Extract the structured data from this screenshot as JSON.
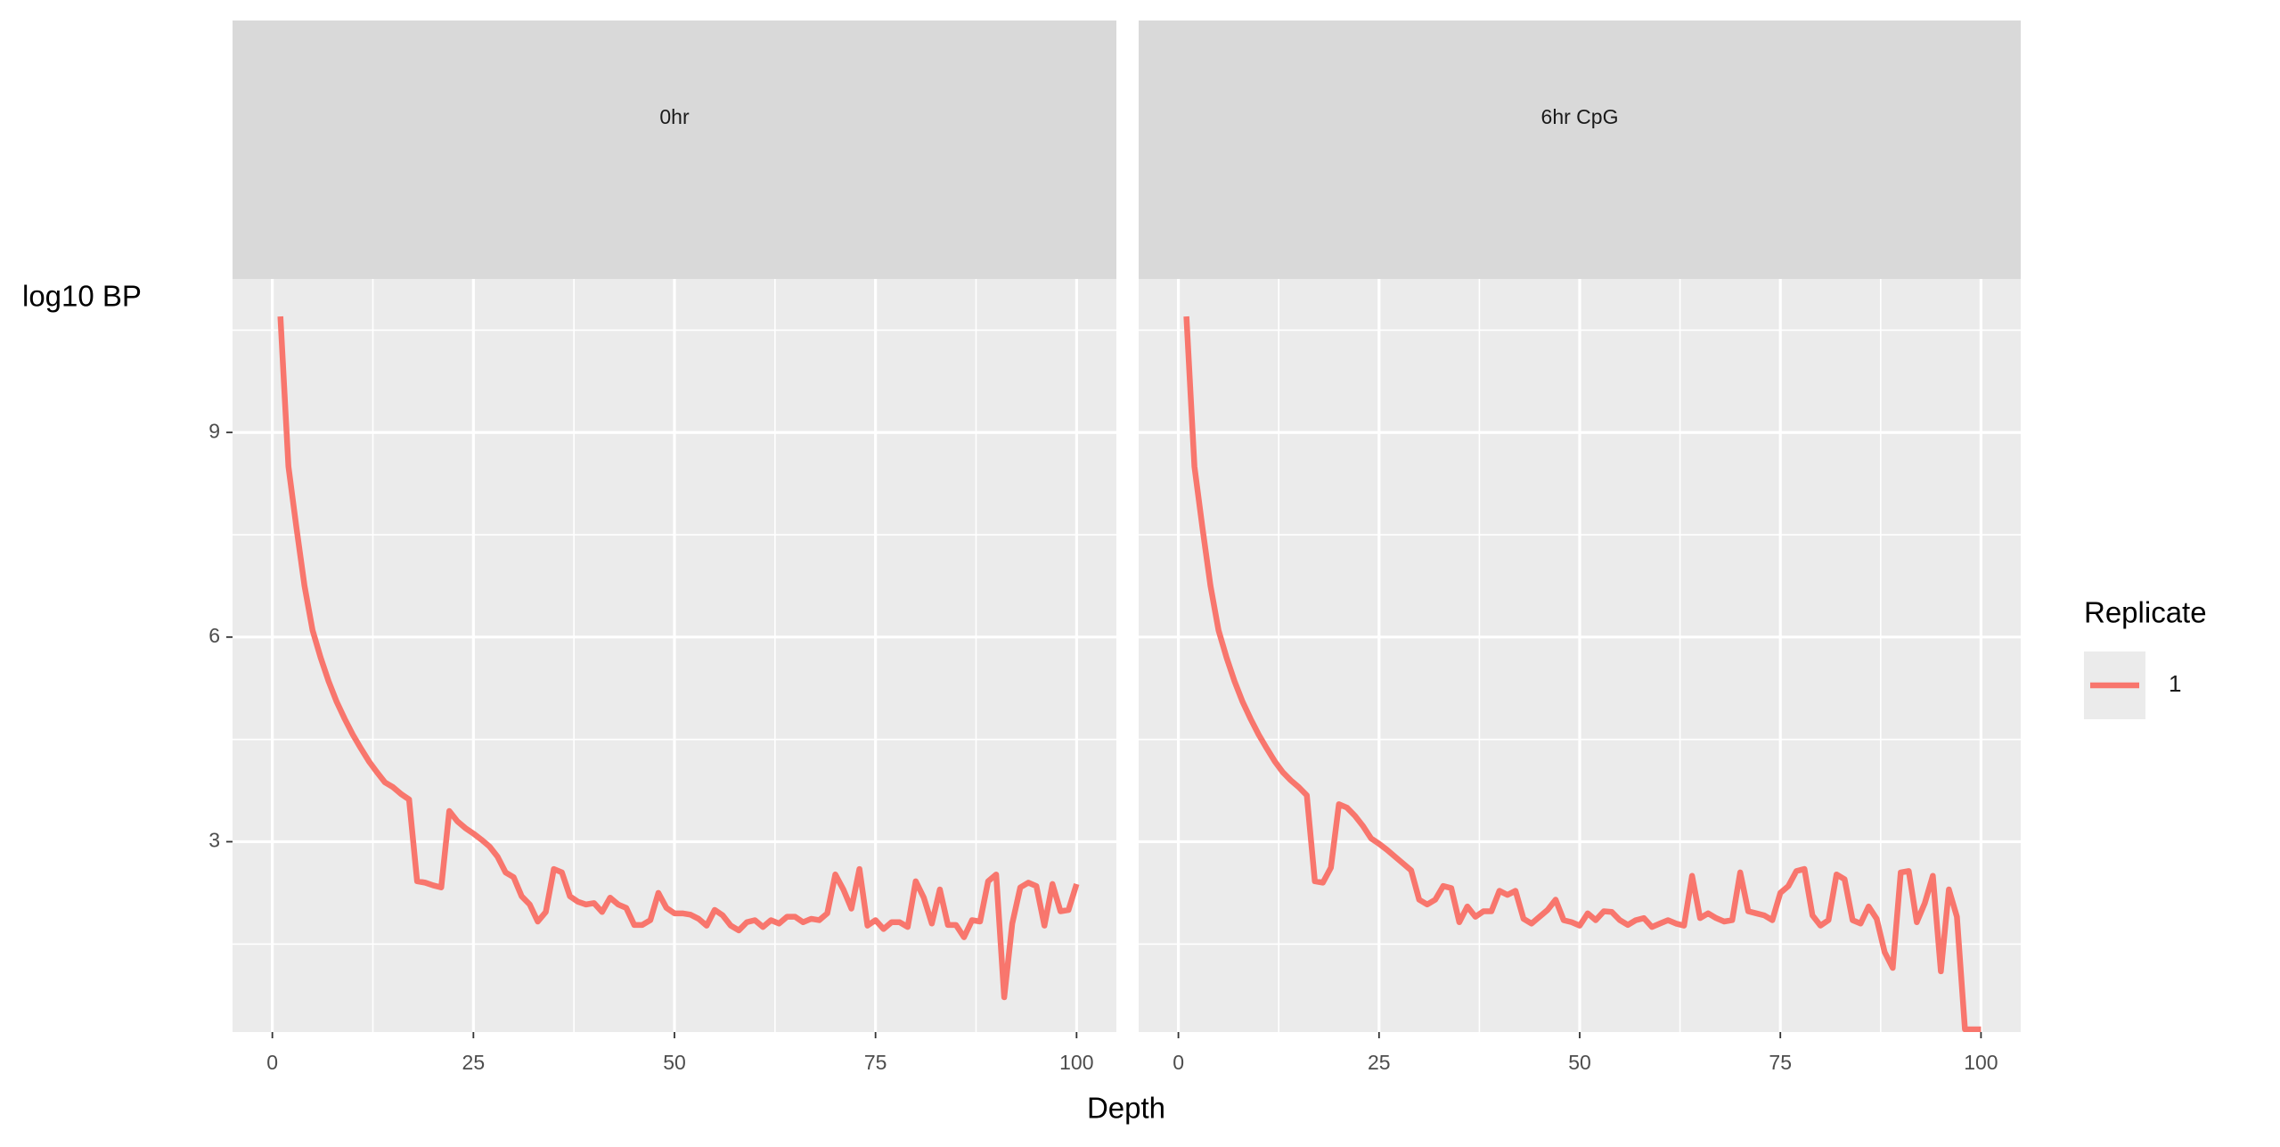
{
  "chart_data": {
    "type": "line",
    "y_label": "log10 BP",
    "x_label": "Depth",
    "legend_title": "Replicate",
    "xlim": [
      -4.95,
      104.95
    ],
    "ylim": [
      0.21,
      11.25
    ],
    "xticks": [
      0,
      25,
      50,
      75,
      100
    ],
    "yticks": [
      3,
      6,
      9
    ],
    "grid": true,
    "x": [
      1,
      2,
      3,
      4,
      5,
      6,
      7,
      8,
      9,
      10,
      11,
      12,
      13,
      14,
      15,
      16,
      17,
      18,
      19,
      20,
      21,
      22,
      23,
      24,
      25,
      26,
      27,
      28,
      29,
      30,
      31,
      32,
      33,
      34,
      35,
      36,
      37,
      38,
      39,
      40,
      41,
      42,
      43,
      44,
      45,
      46,
      47,
      48,
      49,
      50,
      51,
      52,
      53,
      54,
      55,
      56,
      57,
      58,
      59,
      60,
      61,
      62,
      63,
      64,
      65,
      66,
      67,
      68,
      69,
      70,
      71,
      72,
      73,
      74,
      75,
      76,
      77,
      78,
      79,
      80,
      81,
      82,
      83,
      84,
      85,
      86,
      87,
      88,
      89,
      90,
      91,
      92,
      93,
      94,
      95,
      96,
      97,
      98,
      99,
      100
    ],
    "facets": [
      {
        "title": "0hr",
        "series": [
          {
            "name": "1",
            "color": "#F8766D",
            "values": [
              10.7,
              8.5,
              7.6,
              6.75,
              6.1,
              5.7,
              5.35,
              5.05,
              4.8,
              4.57,
              4.37,
              4.18,
              4.02,
              3.87,
              3.8,
              3.7,
              3.62,
              2.42,
              2.4,
              2.36,
              2.33,
              3.45,
              3.3,
              3.2,
              3.12,
              3.03,
              2.93,
              2.78,
              2.55,
              2.48,
              2.2,
              2.08,
              1.83,
              1.97,
              2.6,
              2.55,
              2.2,
              2.12,
              2.08,
              2.1,
              1.97,
              2.18,
              2.08,
              2.03,
              1.78,
              1.78,
              1.85,
              2.25,
              2.03,
              1.95,
              1.95,
              1.93,
              1.87,
              1.77,
              2.0,
              1.92,
              1.77,
              1.7,
              1.82,
              1.85,
              1.75,
              1.85,
              1.8,
              1.9,
              1.9,
              1.82,
              1.87,
              1.85,
              1.95,
              2.52,
              2.3,
              2.02,
              2.6,
              1.77,
              1.85,
              1.72,
              1.82,
              1.82,
              1.75,
              2.42,
              2.18,
              1.8,
              2.3,
              1.78,
              1.78,
              1.6,
              1.85,
              1.83,
              2.42,
              2.52,
              0.72,
              1.8,
              2.33,
              2.4,
              2.35,
              1.77,
              2.38,
              1.98,
              2.0,
              2.38
            ]
          }
        ]
      },
      {
        "title": "6hr CpG",
        "series": [
          {
            "name": "1",
            "color": "#F8766D",
            "values": [
              10.7,
              8.5,
              7.6,
              6.75,
              6.1,
              5.7,
              5.35,
              5.05,
              4.8,
              4.57,
              4.37,
              4.18,
              4.02,
              3.9,
              3.8,
              3.68,
              2.42,
              2.4,
              2.62,
              3.55,
              3.5,
              3.38,
              3.23,
              3.05,
              2.97,
              2.88,
              2.78,
              2.68,
              2.58,
              2.15,
              2.08,
              2.15,
              2.35,
              2.32,
              1.82,
              2.05,
              1.9,
              1.98,
              1.98,
              2.28,
              2.22,
              2.28,
              1.87,
              1.8,
              1.9,
              2.0,
              2.15,
              1.85,
              1.82,
              1.77,
              1.95,
              1.85,
              1.98,
              1.97,
              1.85,
              1.78,
              1.85,
              1.88,
              1.75,
              1.8,
              1.85,
              1.8,
              1.77,
              2.5,
              1.88,
              1.95,
              1.88,
              1.83,
              1.85,
              2.55,
              1.98,
              1.95,
              1.92,
              1.85,
              2.25,
              2.35,
              2.57,
              2.6,
              1.92,
              1.77,
              1.85,
              2.52,
              2.45,
              1.85,
              1.8,
              2.05,
              1.87,
              1.38,
              1.15,
              2.55,
              2.57,
              1.82,
              2.1,
              2.5,
              1.1,
              2.3,
              1.9,
              0.25,
              0.25,
              0.25
            ]
          }
        ]
      }
    ]
  }
}
